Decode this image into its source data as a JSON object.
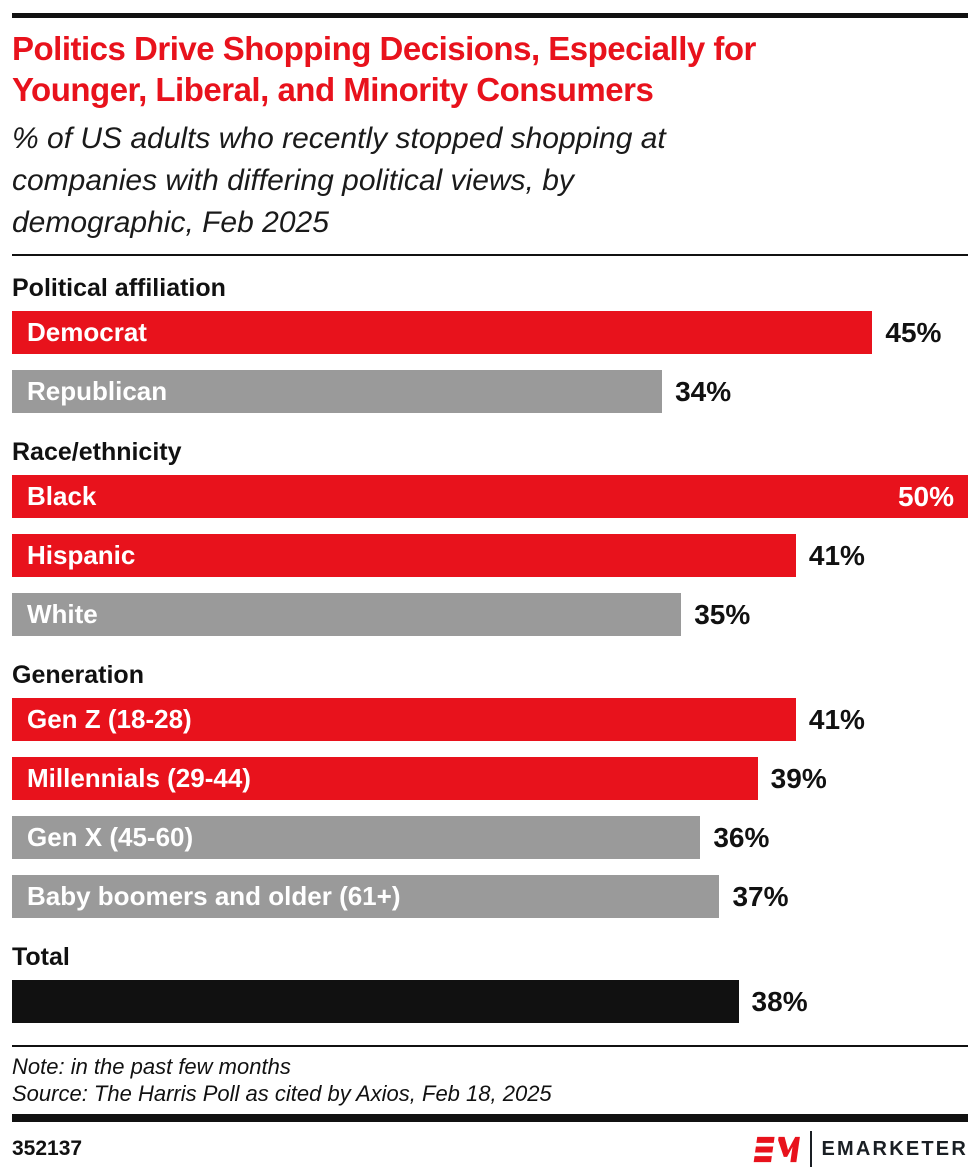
{
  "header": {
    "title_line1": "Politics Drive Shopping Decisions, Especially for",
    "title_line2": "Younger, Liberal, and Minority Consumers",
    "subtitle_line1": "% of US adults who recently stopped shopping at",
    "subtitle_line2": "companies with differing political views, by",
    "subtitle_line3": "demographic, Feb 2025"
  },
  "colors": {
    "red": "#e8121c",
    "gray": "#9a9a9a",
    "black": "#111111"
  },
  "chart_data": {
    "type": "bar",
    "orientation": "horizontal",
    "unit": "%",
    "value_suffix": "%",
    "xlim": [
      0,
      50
    ],
    "grid": false,
    "legend": "none",
    "title": "Politics Drive Shopping Decisions, Especially for Younger, Liberal, and Minority Consumers",
    "subtitle": "% of US adults who recently stopped shopping at companies with differing political views, by demographic, Feb 2025",
    "sections": [
      {
        "header": "Political affiliation",
        "rows": [
          {
            "label": "Democrat",
            "value": 45,
            "color": "red"
          },
          {
            "label": "Republican",
            "value": 34,
            "color": "gray"
          }
        ]
      },
      {
        "header": "Race/ethnicity",
        "rows": [
          {
            "label": "Black",
            "value": 50,
            "color": "red",
            "value_inside": true
          },
          {
            "label": "Hispanic",
            "value": 41,
            "color": "red"
          },
          {
            "label": "White",
            "value": 35,
            "color": "gray"
          }
        ]
      },
      {
        "header": "Generation",
        "rows": [
          {
            "label": "Gen Z (18-28)",
            "value": 41,
            "color": "red"
          },
          {
            "label": "Millennials (29-44)",
            "value": 39,
            "color": "red"
          },
          {
            "label": "Gen X (45-60)",
            "value": 36,
            "color": "gray"
          },
          {
            "label": "Baby boomers and older (61+)",
            "value": 37,
            "color": "gray"
          }
        ]
      },
      {
        "header": "Total",
        "rows": [
          {
            "label": "",
            "value": 38,
            "color": "black"
          }
        ]
      }
    ]
  },
  "footer": {
    "note": "Note: in the past few months",
    "source": "Source: The Harris Poll as cited by Axios, Feb 18, 2025",
    "chart_id": "352137",
    "brand_text": "EMARKETER",
    "logo_mark": "EM"
  }
}
